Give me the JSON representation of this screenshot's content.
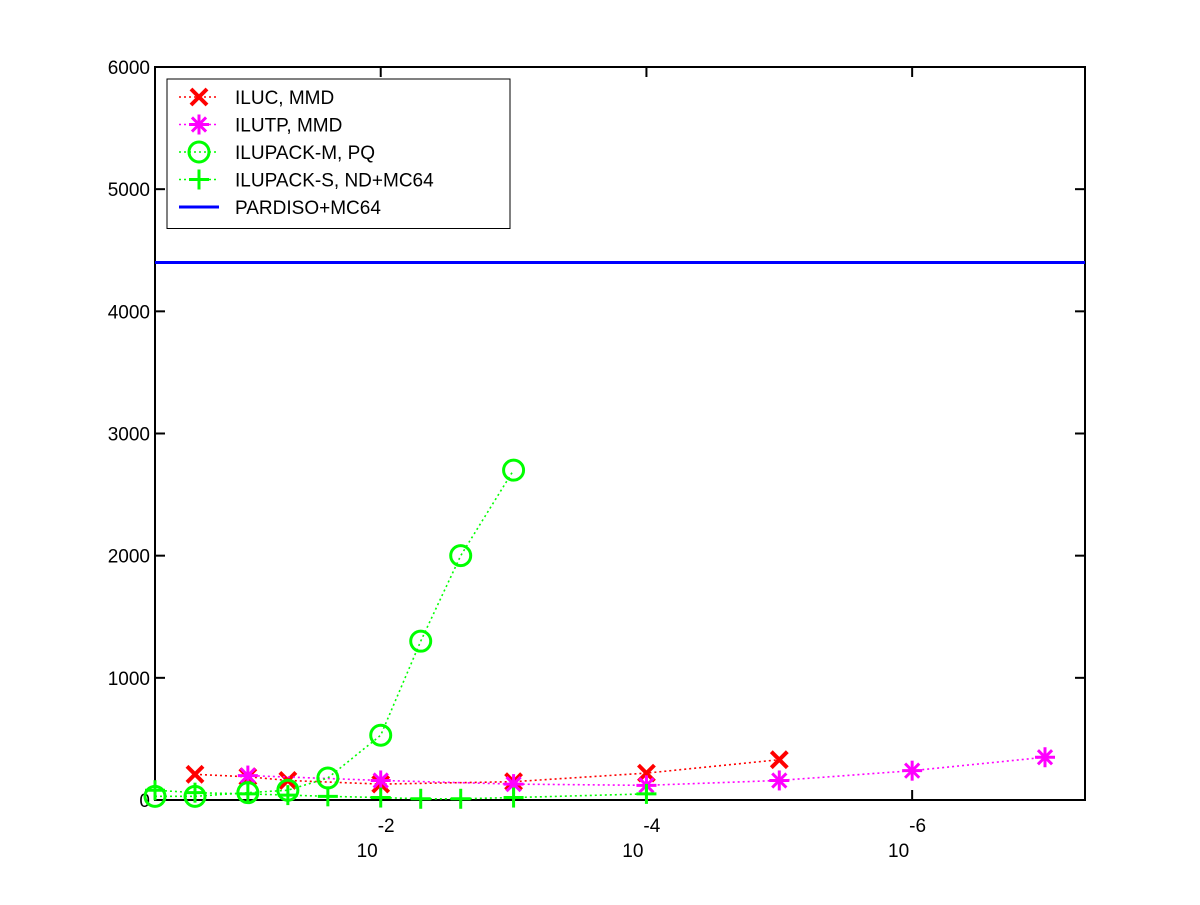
{
  "chart_data": {
    "type": "line",
    "title": "",
    "xlabel": "",
    "ylabel": "",
    "x_scale": "log",
    "x_reversed": true,
    "xlim": [
      0.5,
      5e-08
    ],
    "ylim": [
      0,
      6000
    ],
    "y_ticks": [
      0,
      1000,
      2000,
      3000,
      4000,
      5000,
      6000
    ],
    "x_ticks": [
      {
        "value": 0.01,
        "base": "10",
        "exponent": "-2"
      },
      {
        "value": 0.0001,
        "base": "10",
        "exponent": "-4"
      },
      {
        "value": 1e-06,
        "base": "10",
        "exponent": "-6"
      }
    ],
    "grid": false,
    "legend_position": "top-left",
    "series": [
      {
        "name": "ILUC, MMD",
        "color": "#ff0000",
        "marker": "x",
        "line_style": "dotted",
        "x": [
          0.25,
          0.1,
          0.05,
          0.01,
          0.001,
          0.0001,
          1e-05
        ],
        "y": [
          210,
          190,
          160,
          130,
          150,
          220,
          330
        ]
      },
      {
        "name": "ILUTP, MMD",
        "color": "#ff00ff",
        "marker": "asterisk",
        "line_style": "dotted",
        "x": [
          0.1,
          0.01,
          0.001,
          0.0001,
          1e-05,
          1e-06,
          1e-07
        ],
        "y": [
          200,
          160,
          130,
          120,
          160,
          240,
          350
        ]
      },
      {
        "name": "ILUPACK-M, PQ",
        "color": "#00ff00",
        "marker": "circle",
        "line_style": "dotted",
        "x": [
          0.5,
          0.25,
          0.1,
          0.05,
          0.025,
          0.01,
          0.005,
          0.0025,
          0.001
        ],
        "y": [
          30,
          30,
          60,
          80,
          180,
          530,
          1300,
          2000,
          2700
        ]
      },
      {
        "name": "ILUPACK-S, ND+MC64",
        "color": "#00ff00",
        "marker": "plus",
        "line_style": "dotted",
        "x": [
          0.5,
          0.25,
          0.1,
          0.05,
          0.025,
          0.01,
          0.005,
          0.0025,
          0.001,
          0.0001
        ],
        "y": [
          80,
          60,
          50,
          40,
          30,
          20,
          10,
          10,
          20,
          50
        ]
      },
      {
        "name": "PARDISO+MC64",
        "color": "#0000ff",
        "marker": "none",
        "line_style": "solid",
        "x": [
          0.5,
          5e-08
        ],
        "y": [
          4400,
          4400
        ]
      }
    ]
  }
}
